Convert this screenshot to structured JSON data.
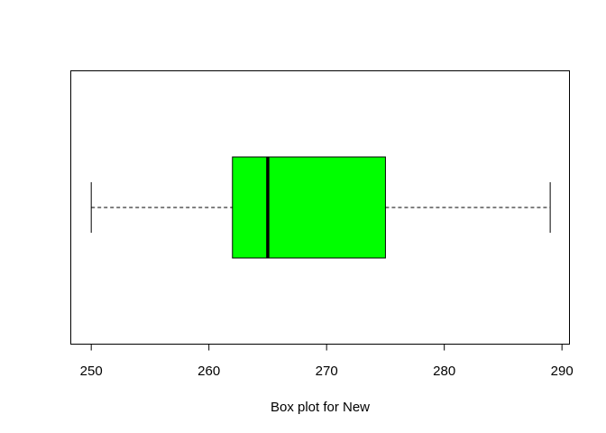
{
  "chart_data": {
    "type": "boxplot",
    "orientation": "horizontal",
    "xlabel": "Box plot for New",
    "xlim": [
      248.3,
      290.6
    ],
    "x_ticks": [
      250,
      260,
      270,
      280,
      290
    ],
    "x_tick_labels": [
      "250",
      "260",
      "270",
      "280",
      "290"
    ],
    "grid": false,
    "legend": "none",
    "box_color": "#00ff00",
    "box": {
      "min": 250,
      "q1": 262,
      "median": 265,
      "q3": 275,
      "max": 289
    }
  }
}
